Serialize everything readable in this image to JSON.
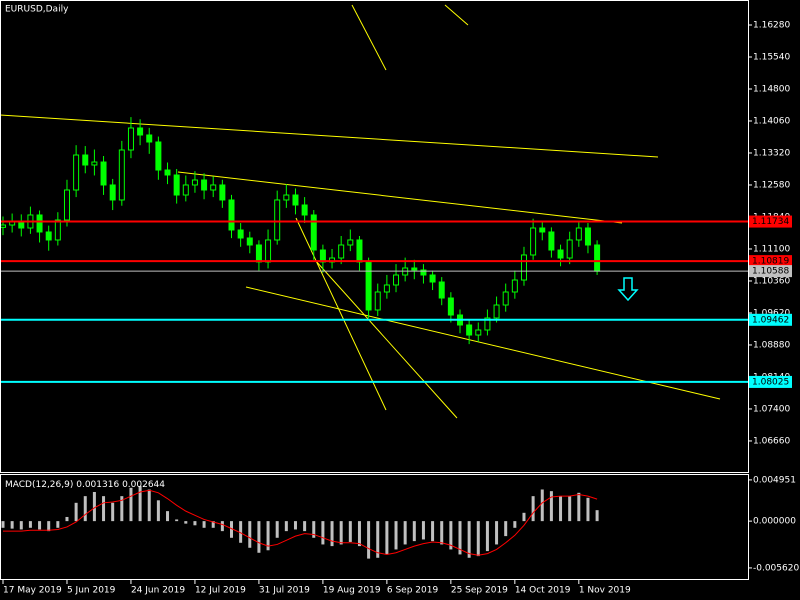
{
  "chart_data": [
    {
      "type": "candlestick",
      "title": "EURUSD,Daily",
      "categories": [
        "17 May 2019",
        null,
        null,
        null,
        null,
        null,
        null,
        "5 Jun 2019",
        null,
        null,
        null,
        null,
        null,
        null,
        "24 Jun 2019",
        null,
        null,
        null,
        null,
        null,
        null,
        "12 Jul 2019",
        null,
        null,
        null,
        null,
        null,
        null,
        "31 Jul 2019",
        null,
        null,
        null,
        null,
        null,
        null,
        "19 Aug 2019",
        null,
        null,
        null,
        null,
        null,
        null,
        "6 Sep 2019",
        null,
        null,
        null,
        null,
        null,
        null,
        "25 Sep 2019",
        null,
        null,
        null,
        null,
        null,
        null,
        "14 Oct 2019",
        null,
        null,
        null,
        null,
        null,
        null,
        "1 Nov 2019",
        null,
        null
      ],
      "open": [
        1.116,
        1.11654,
        1.11724,
        1.11585,
        1.11886,
        1.11493,
        1.11308,
        1.1177,
        1.12464,
        1.13273,
        1.13042,
        1.13111,
        1.1258,
        1.12233,
        1.13389,
        1.13898,
        1.13736,
        1.13574,
        1.12926,
        1.12811,
        1.12348,
        1.1258,
        1.12695,
        1.12464,
        1.1258,
        1.12233,
        1.11539,
        1.11354,
        1.11192,
        1.10799,
        1.11308,
        1.12233,
        1.12348,
        1.12117,
        1.11886,
        1.11076,
        1.10799,
        1.10891,
        1.11192,
        1.11308,
        1.10799,
        1.09689,
        1.10105,
        1.10267,
        1.10498,
        1.1066,
        1.10614,
        1.10498,
        1.10336,
        1.09966,
        1.09573,
        1.09342,
        1.0911,
        1.09226,
        1.09504,
        1.09804,
        1.10105,
        1.10382,
        1.10961,
        1.11585,
        1.11493,
        1.11076,
        1.10891,
        1.11308,
        1.11585,
        1.11192
      ],
      "high": [
        1.1185,
        1.1192,
        1.119,
        1.1208,
        1.1199,
        1.1164,
        1.1195,
        1.127,
        1.135,
        1.1348,
        1.134,
        1.1325,
        1.1272,
        1.136,
        1.1415,
        1.141,
        1.139,
        1.137,
        1.131,
        1.1295,
        1.128,
        1.129,
        1.1285,
        1.1278,
        1.127,
        1.1235,
        1.117,
        1.115,
        1.113,
        1.1155,
        1.1245,
        1.126,
        1.125,
        1.123,
        1.12,
        1.112,
        1.111,
        1.114,
        1.1155,
        1.114,
        1.109,
        1.103,
        1.105,
        1.1075,
        1.109,
        1.1085,
        1.1075,
        1.106,
        1.1045,
        1.101,
        1.097,
        1.0945,
        1.094,
        1.097,
        1.1,
        1.103,
        1.106,
        1.1115,
        1.118,
        1.1175,
        1.116,
        1.112,
        1.115,
        1.1175,
        1.117,
        1.113
      ],
      "low": [
        1.1142,
        1.1148,
        1.1139,
        1.1145,
        1.1125,
        1.1106,
        1.1118,
        1.1162,
        1.123,
        1.1285,
        1.128,
        1.1235,
        1.12,
        1.121,
        1.132,
        1.135,
        1.133,
        1.127,
        1.126,
        1.1215,
        1.122,
        1.124,
        1.1225,
        1.123,
        1.1205,
        1.1135,
        1.1115,
        1.11,
        1.106,
        1.1065,
        1.112,
        1.1205,
        1.119,
        1.117,
        1.1085,
        1.1055,
        1.1065,
        1.1075,
        1.1105,
        1.106,
        1.095,
        1.0955,
        1.0995,
        1.101,
        1.1035,
        1.104,
        1.103,
        1.1015,
        1.098,
        1.094,
        1.0915,
        1.089,
        1.0895,
        1.091,
        1.094,
        1.0965,
        1.0995,
        1.1025,
        1.1085,
        1.113,
        1.109,
        1.107,
        1.1075,
        1.1115,
        1.11,
        1.105
      ],
      "close": [
        1.11654,
        1.11724,
        1.11585,
        1.11886,
        1.11493,
        1.11308,
        1.1177,
        1.12464,
        1.13273,
        1.13042,
        1.13111,
        1.1258,
        1.12233,
        1.13389,
        1.13898,
        1.13736,
        1.13574,
        1.12926,
        1.12811,
        1.12348,
        1.1258,
        1.12695,
        1.12464,
        1.1258,
        1.12233,
        1.11539,
        1.11354,
        1.11192,
        1.10799,
        1.11308,
        1.12233,
        1.12348,
        1.12117,
        1.11886,
        1.11076,
        1.10799,
        1.10891,
        1.11192,
        1.11308,
        1.10799,
        1.09689,
        1.10105,
        1.10267,
        1.10498,
        1.1066,
        1.10614,
        1.10498,
        1.10336,
        1.09966,
        1.09573,
        1.09342,
        1.0911,
        1.09226,
        1.09504,
        1.09804,
        1.10105,
        1.10382,
        1.10961,
        1.11585,
        1.11493,
        1.11076,
        1.10891,
        1.11308,
        1.11585,
        1.11192,
        1.10588
      ],
      "color": "#00ff00",
      "ylim": [
        1.05942,
        1.16858
      ],
      "yticks": [
        {
          "value": 1.1628,
          "label": "1.16280"
        },
        {
          "value": 1.1554,
          "label": "1.15540"
        },
        {
          "value": 1.148,
          "label": "1.14800"
        },
        {
          "value": 1.1406,
          "label": "1.14060"
        },
        {
          "value": 1.1332,
          "label": "1.13320"
        },
        {
          "value": 1.1258,
          "label": "1.12580"
        },
        {
          "value": 1.1184,
          "label": "1.11840"
        },
        {
          "value": 1.111,
          "label": "1.11100"
        },
        {
          "value": 1.1036,
          "label": "1.10360"
        },
        {
          "value": 1.0962,
          "label": "1.09620"
        },
        {
          "value": 1.0888,
          "label": "1.08880"
        },
        {
          "value": 1.0814,
          "label": "1.08140"
        },
        {
          "value": 1.074,
          "label": "1.07400"
        },
        {
          "value": 1.0666,
          "label": "1.06660"
        }
      ],
      "levels": [
        {
          "value": 1.11734,
          "color": "#ff0000"
        },
        {
          "value": 1.10819,
          "color": "#ff0000"
        },
        {
          "value": 1.10588,
          "color": "#c0c0c0"
        },
        {
          "value": 1.09462,
          "color": "#00ffff"
        },
        {
          "value": 1.08025,
          "color": "#00ffff"
        }
      ]
    },
    {
      "type": "macd",
      "title": "MACD(12,26,9)",
      "histogram": {
        "color": "#c0c0c0",
        "values": [
          -0.0008,
          -0.0009,
          -0.001,
          -0.0008,
          -0.001,
          -0.0012,
          -0.0008,
          0.0005,
          0.0022,
          0.003,
          0.0035,
          0.003,
          0.0022,
          0.003,
          0.004,
          0.0042,
          0.0038,
          0.0025,
          0.0012,
          0.0002,
          -0.0003,
          -0.0005,
          -0.0008,
          -0.0008,
          -0.0012,
          -0.002,
          -0.0026,
          -0.0032,
          -0.0038,
          -0.0035,
          -0.002,
          -0.0012,
          -0.001,
          -0.0012,
          -0.002,
          -0.0028,
          -0.003,
          -0.0028,
          -0.0025,
          -0.003,
          -0.0045,
          -0.0044,
          -0.004,
          -0.0034,
          -0.0028,
          -0.0024,
          -0.0022,
          -0.0024,
          -0.0028,
          -0.0034,
          -0.004,
          -0.0044,
          -0.0042,
          -0.0036,
          -0.0028,
          -0.0018,
          -0.0008,
          0.001,
          0.003,
          0.0038,
          0.0036,
          0.003,
          0.003,
          0.0034,
          0.0028,
          0.001316
        ]
      },
      "signal": {
        "color": "#ff0000",
        "values": [
          -0.0012,
          -0.0012,
          -0.0012,
          -0.0011,
          -0.0011,
          -0.0011,
          -0.001,
          -0.0007,
          -0.0001,
          0.0008,
          0.0016,
          0.0022,
          0.0023,
          0.0025,
          0.003,
          0.0035,
          0.0037,
          0.0034,
          0.0027,
          0.0019,
          0.0012,
          0.0007,
          0.0002,
          -0.0001,
          -0.0004,
          -0.0009,
          -0.0014,
          -0.002,
          -0.0026,
          -0.003,
          -0.0028,
          -0.0023,
          -0.0018,
          -0.0015,
          -0.0016,
          -0.002,
          -0.0024,
          -0.0026,
          -0.0026,
          -0.0027,
          -0.0033,
          -0.0038,
          -0.004,
          -0.0038,
          -0.0034,
          -0.003,
          -0.0027,
          -0.0025,
          -0.0026,
          -0.0029,
          -0.0034,
          -0.0039,
          -0.0041,
          -0.0039,
          -0.0034,
          -0.0026,
          -0.0017,
          -0.0005,
          0.001,
          0.0022,
          0.0029,
          0.003,
          0.003,
          0.0032,
          0.003,
          0.002644
        ]
      },
      "ylim": [
        -0.00695,
        0.00554
      ],
      "yticks": [
        0.004951,
        {
          "value": 0,
          "label": "0.000000"
        },
        {
          "value": -0.00562,
          "label": "-0.005620"
        }
      ]
    }
  ]
}
